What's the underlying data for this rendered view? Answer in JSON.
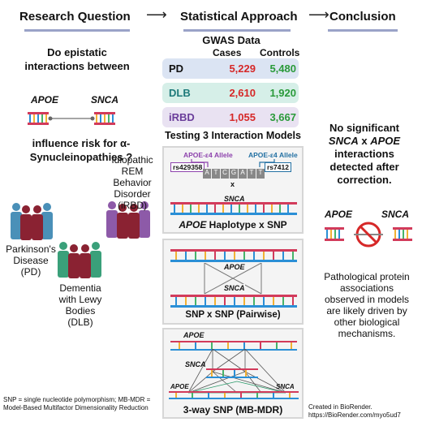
{
  "headers": {
    "research_question": "Research Question",
    "statistical_approach": "Statistical Approach",
    "conclusion": "Conclusion"
  },
  "question": {
    "top": "Do epistatic interactions between",
    "gene1": "APOE",
    "gene2": "SNCA",
    "bottom": "influence risk for α-Synucleinopathies ?"
  },
  "diseases": {
    "pd": "Parkinson's Disease (PD)",
    "dlb": "Dementia with Lewy Bodies (DLB)",
    "irbd": "Idiopathic REM Behavior Disorder (iRBD)"
  },
  "gwas": {
    "title": "GWAS Data",
    "col_cases": "Cases",
    "col_controls": "Controls",
    "rows": [
      {
        "label": "PD",
        "cases": "5,229",
        "controls": "5,480"
      },
      {
        "label": "DLB",
        "cases": "2,610",
        "controls": "1,920"
      },
      {
        "label": "iRBD",
        "cases": "1,055",
        "controls": "3,667"
      }
    ]
  },
  "models": {
    "title": "Testing 3 Interaction Models",
    "allele_left": "APOE-ε4 Allele",
    "allele_right": "APOE-ε4 Allele",
    "rs_left": "rs429358",
    "rs_right": "rs7412",
    "bases": [
      "A",
      "T",
      "C",
      "G",
      "A",
      "T",
      "T"
    ],
    "x_mark": "x",
    "snca": "SNCA",
    "apoe": "APOE",
    "haplotype_caption_gene": "APOE",
    "haplotype_caption_rest": " Haplotype x SNP",
    "pairwise_caption": "SNP x  SNP (Pairwise)",
    "threeway_caption": "3-way SNP (MB-MDR)"
  },
  "conclusion": {
    "line1": "No significant",
    "gene_snca": "SNCA",
    "x": " x ",
    "gene_apoe": "APOE",
    "line3": "interactions detected after correction.",
    "gene1": "APOE",
    "gene2": "SNCA",
    "note": "Pathological protein associations observed in models are likely driven by other biological mechanisms."
  },
  "footer": {
    "abbrev": "SNP = single nucleotide polymorphism; MB-MDR = Model-Based Multifactor Dimensionality Reduction",
    "credit1": "Created in BioRender.",
    "credit2": "https://BioRender.com/myo5ud7"
  },
  "colors": {
    "pd_row": "#dbe4f3",
    "dlb_row": "#d6efe8",
    "irbd_row": "#e9e2f2",
    "cases": "#d62828",
    "controls": "#2a9a3a",
    "dlb_label": "#1e7a7a",
    "irbd_label": "#6a3d9a",
    "pd_people": "#4a90b8",
    "dlb_people": "#3aa07a",
    "irbd_people": "#8d5aa8",
    "male": "#8a2232",
    "allele_left": "#8e44ad",
    "allele_right": "#2471a3"
  }
}
